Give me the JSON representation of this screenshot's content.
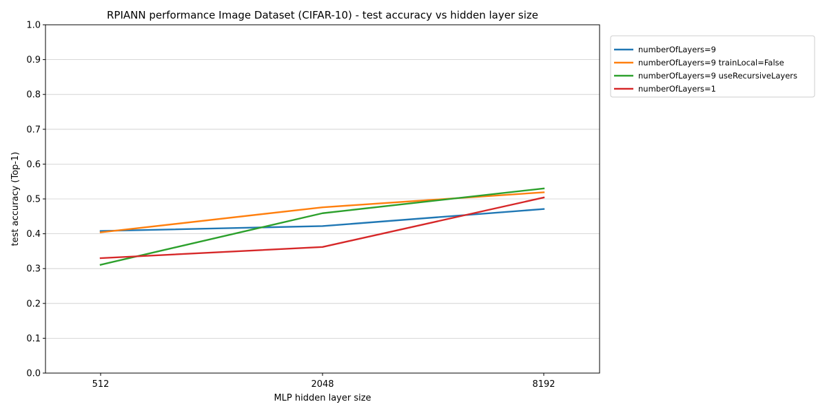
{
  "chart_data": {
    "type": "line",
    "title": "RPIANN performance Image Dataset (CIFAR-10) - test accuracy vs hidden layer size",
    "xlabel": "MLP hidden layer size",
    "ylabel": "test accuracy (Top-1)",
    "categories": [
      "512",
      "2048",
      "8192"
    ],
    "ylim": [
      0,
      1
    ],
    "yticks": [
      "0.0",
      "0.1",
      "0.2",
      "0.3",
      "0.4",
      "0.5",
      "0.6",
      "0.7",
      "0.8",
      "0.9",
      "1.0"
    ],
    "grid": "horizontal",
    "legend_position": "outside-right",
    "series": [
      {
        "name": "numberOfLayers=9",
        "color": "#1f77b4",
        "values": [
          0.408,
          0.422,
          0.471
        ]
      },
      {
        "name": "numberOfLayers=9 trainLocal=False",
        "color": "#ff7f0e",
        "values": [
          0.404,
          0.476,
          0.519
        ]
      },
      {
        "name": "numberOfLayers=9 useRecursiveLayers",
        "color": "#2ca02c",
        "values": [
          0.311,
          0.459,
          0.53
        ]
      },
      {
        "name": "numberOfLayers=1",
        "color": "#d62728",
        "values": [
          0.33,
          0.362,
          0.504
        ]
      }
    ]
  }
}
